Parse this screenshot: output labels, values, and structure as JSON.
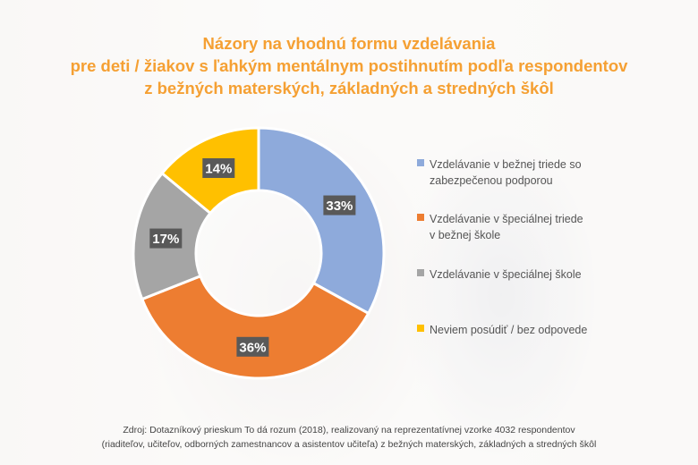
{
  "chart_data": {
    "type": "pie",
    "donut": true,
    "title_lines": [
      "Názory na vhodnú formu vzdelávania",
      "pre deti / žiakov s ľahkým mentálnym postihnutím podľa respondentov",
      "z bežných materských, základných a stredných škôl"
    ],
    "slices": [
      {
        "label": "Vzdelávanie v bežnej triede so zabezpečenou podporou",
        "value": 33,
        "display": "33%",
        "color": "#8eaadb"
      },
      {
        "label": "Vzdelávanie v špeciálnej triede v bežnej škole",
        "value": 36,
        "display": "36%",
        "color": "#ed7d31"
      },
      {
        "label": "Vzdelávanie v špeciálnej škole",
        "value": 17,
        "display": "17%",
        "color": "#a5a5a5"
      },
      {
        "label": "Neviem posúdiť / bez odpovede",
        "value": 14,
        "display": "14%",
        "color": "#ffc000"
      }
    ],
    "legend_position": "right",
    "source_lines": [
      "Zdroj: Dotazníkový prieskum To dá rozum (2018), realizovaný na reprezentatívnej vzorke 4032 respondentov",
      "(riaditeľov, učiteľov, odborných zamestnancov a asistentov učiteľa) z bežných materských, základných a stredných škôl"
    ]
  },
  "colors": {
    "title": "#f5a033",
    "data_label_bg": "#595959",
    "data_label_text": "#ffffff"
  }
}
